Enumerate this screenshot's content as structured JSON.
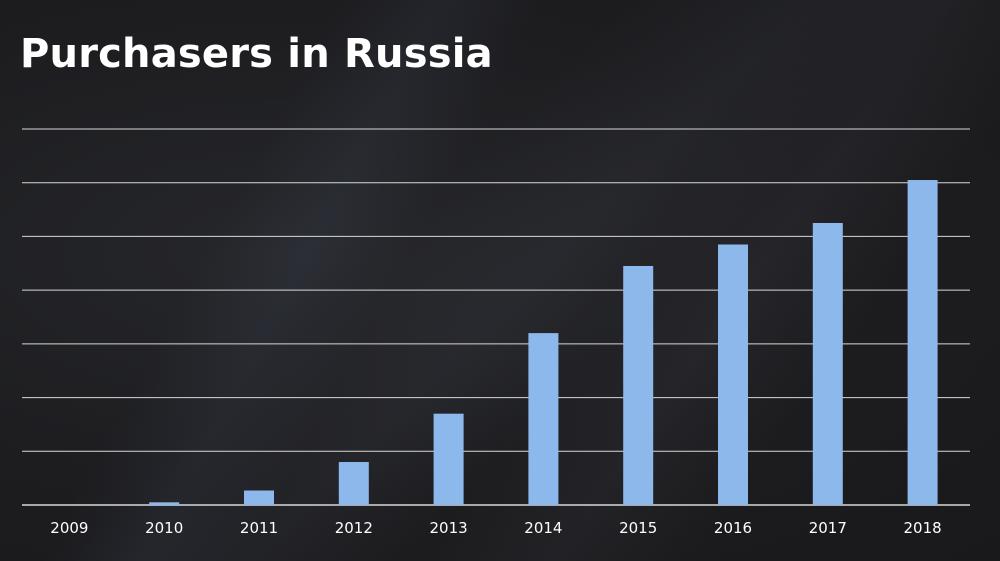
{
  "title": "Purchasers in Russia",
  "chart_data": {
    "type": "bar",
    "title": "Purchasers in Russia",
    "xlabel": "",
    "ylabel": "",
    "categories": [
      "2009",
      "2010",
      "2011",
      "2012",
      "2013",
      "2014",
      "2015",
      "2016",
      "2017",
      "2018"
    ],
    "values": [
      0,
      0.05,
      0.27,
      0.8,
      1.7,
      3.2,
      4.45,
      4.85,
      5.25,
      6.05
    ],
    "ylim": [
      0,
      7
    ],
    "grid": true,
    "legend": "none",
    "colors": {
      "bar": "#8db8ec",
      "grid": "#d8d8d8",
      "text": "#ffffff"
    }
  }
}
